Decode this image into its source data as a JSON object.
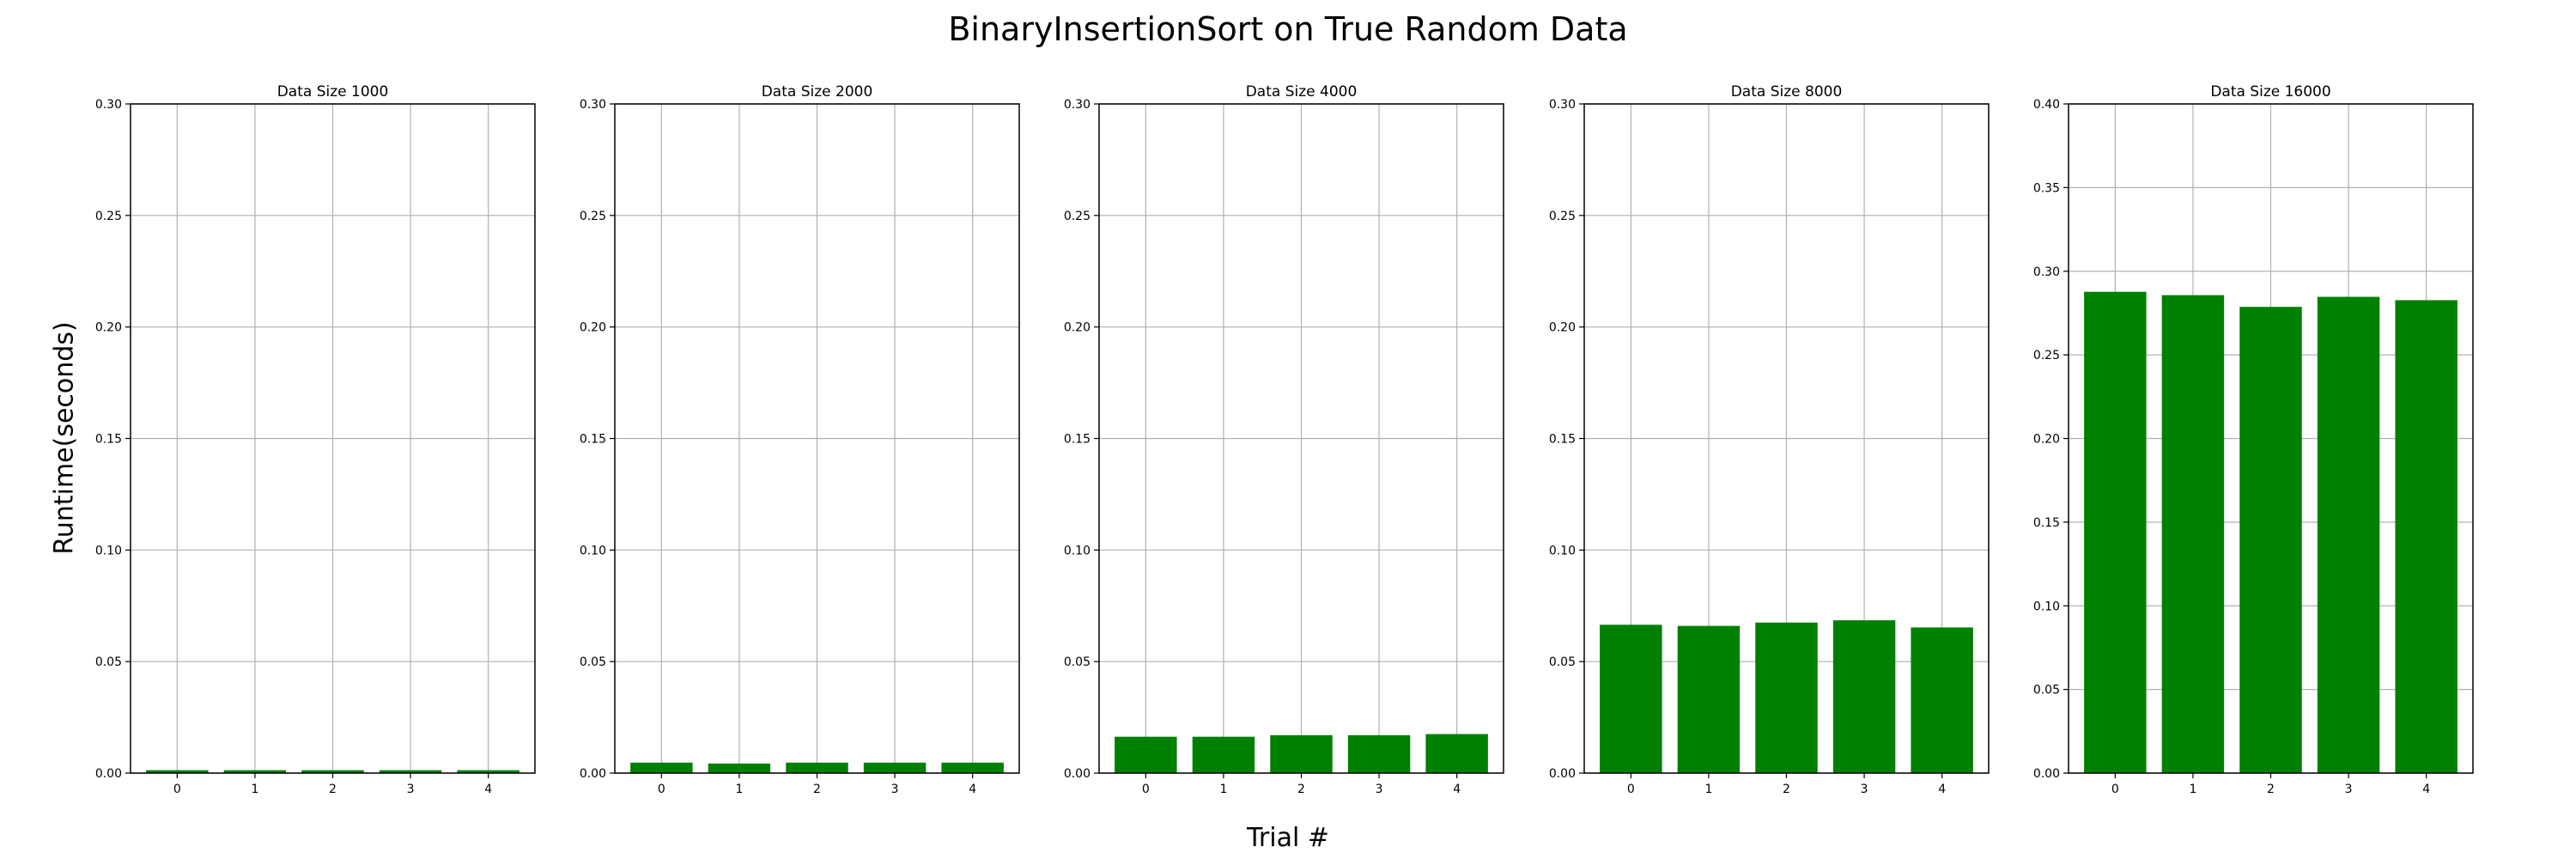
{
  "figure": {
    "title": "BinaryInsertionSort on True Random Data",
    "xlabel": "Trial #",
    "ylabel": "Runtime(seconds)"
  },
  "colors": {
    "bar": "#008000",
    "grid": "#b0b0b0",
    "axis": "#000000",
    "background": "#ffffff"
  },
  "chart_data": [
    {
      "type": "bar",
      "title": "Data Size 1000",
      "categories": [
        "0",
        "1",
        "2",
        "3",
        "4"
      ],
      "values": [
        0.0013,
        0.0013,
        0.0013,
        0.0013,
        0.0013
      ],
      "ylim": [
        0,
        0.3
      ],
      "yticks": [
        "0.00",
        "0.05",
        "0.10",
        "0.15",
        "0.20",
        "0.25",
        "0.30"
      ],
      "grid": true
    },
    {
      "type": "bar",
      "title": "Data Size 2000",
      "categories": [
        "0",
        "1",
        "2",
        "3",
        "4"
      ],
      "values": [
        0.0047,
        0.0043,
        0.0047,
        0.0047,
        0.0047
      ],
      "ylim": [
        0,
        0.3
      ],
      "yticks": [
        "0.00",
        "0.05",
        "0.10",
        "0.15",
        "0.20",
        "0.25",
        "0.30"
      ],
      "grid": true
    },
    {
      "type": "bar",
      "title": "Data Size 4000",
      "categories": [
        "0",
        "1",
        "2",
        "3",
        "4"
      ],
      "values": [
        0.0163,
        0.0163,
        0.017,
        0.017,
        0.0175
      ],
      "ylim": [
        0,
        0.3
      ],
      "yticks": [
        "0.00",
        "0.05",
        "0.10",
        "0.15",
        "0.20",
        "0.25",
        "0.30"
      ],
      "grid": true
    },
    {
      "type": "bar",
      "title": "Data Size 8000",
      "categories": [
        "0",
        "1",
        "2",
        "3",
        "4"
      ],
      "values": [
        0.0665,
        0.066,
        0.0675,
        0.0685,
        0.0653
      ],
      "ylim": [
        0,
        0.3
      ],
      "yticks": [
        "0.00",
        "0.05",
        "0.10",
        "0.15",
        "0.20",
        "0.25",
        "0.30"
      ],
      "grid": true
    },
    {
      "type": "bar",
      "title": "Data Size 16000",
      "categories": [
        "0",
        "1",
        "2",
        "3",
        "4"
      ],
      "values": [
        0.2877,
        0.2857,
        0.2787,
        0.2847,
        0.2827
      ],
      "ylim": [
        0,
        0.4
      ],
      "yticks": [
        "0.00",
        "0.05",
        "0.10",
        "0.15",
        "0.20",
        "0.25",
        "0.30",
        "0.35",
        "0.40"
      ],
      "grid": true
    }
  ]
}
